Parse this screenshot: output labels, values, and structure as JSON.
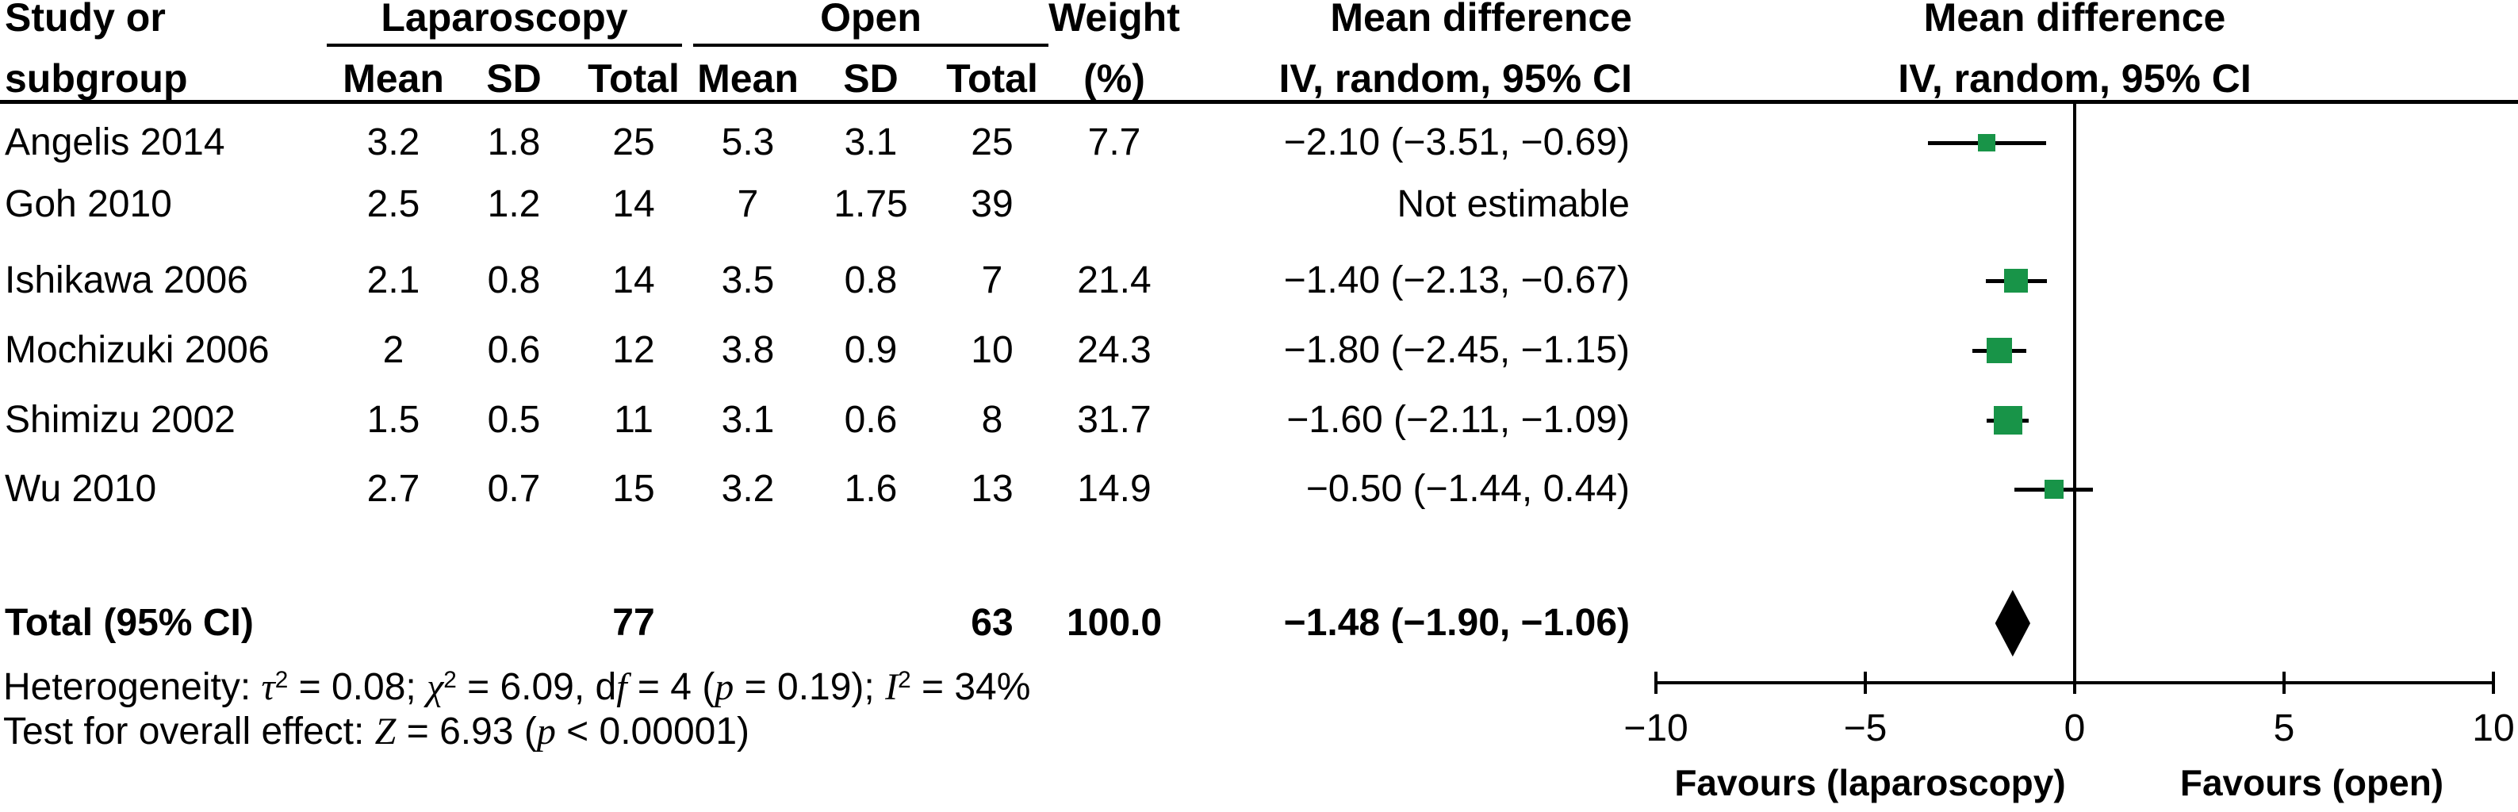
{
  "header": {
    "study_line1": "Study or",
    "study_line2": "subgroup",
    "laparoscopy": "Laparoscopy",
    "open": "Open",
    "mean": "Mean",
    "sd": "SD",
    "total": "Total",
    "weight_line1": "Weight",
    "weight_line2": "(%)",
    "md_line1": "Mean difference",
    "md_line2": "IV, random, 95% CI",
    "plot_line1": "Mean difference",
    "plot_line2": "IV, random, 95% CI"
  },
  "rows": [
    {
      "study": "Angelis 2014",
      "cells": [
        "3.2",
        "1.8",
        "25",
        "5.3",
        "3.1",
        "25",
        "7.7"
      ],
      "ci_text": "−2.10 (−3.51, −0.69)"
    },
    {
      "study": "Goh 2010",
      "cells": [
        "2.5",
        "1.2",
        "14",
        "7",
        "1.75",
        "39",
        ""
      ],
      "ci_text": "Not estimable"
    },
    {
      "study": "Ishikawa 2006",
      "cells": [
        "2.1",
        "0.8",
        "14",
        "3.5",
        "0.8",
        "7",
        "21.4"
      ],
      "ci_text": "−1.40 (−2.13, −0.67)"
    },
    {
      "study": "Mochizuki 2006",
      "cells": [
        "2",
        "0.6",
        "12",
        "3.8",
        "0.9",
        "10",
        "24.3"
      ],
      "ci_text": "−1.80 (−2.45, −1.15)"
    },
    {
      "study": "Shimizu 2002",
      "cells": [
        "1.5",
        "0.5",
        "11",
        "3.1",
        "0.6",
        "8",
        "31.7"
      ],
      "ci_text": "−1.60 (−2.11, −1.09)"
    },
    {
      "study": "Wu 2010",
      "cells": [
        "2.7",
        "0.7",
        "15",
        "3.2",
        "1.6",
        "13",
        "14.9"
      ],
      "ci_text": "−0.50 (−1.44, 0.44)"
    }
  ],
  "total_row": {
    "label": "Total (95% CI)",
    "lap_total": "77",
    "open_total": "63",
    "weight": "100.0",
    "ci_text": "−1.48 (−1.90, −1.06)"
  },
  "footnotes": {
    "heterogeneity_runs": [
      {
        "t": "Heterogeneity: "
      },
      {
        "t": "τ",
        "i": true
      },
      {
        "t": "2",
        "sup": true
      },
      {
        "t": " = 0.08; "
      },
      {
        "t": "χ",
        "i": true
      },
      {
        "t": "2",
        "sup": true
      },
      {
        "t": " = 6.09, d"
      },
      {
        "t": "f",
        "i": true
      },
      {
        "t": " = 4 ("
      },
      {
        "t": "p",
        "i": true
      },
      {
        "t": " = 0.19); "
      },
      {
        "t": "I",
        "i": true
      },
      {
        "t": "2",
        "sup": true
      },
      {
        "t": " = 34%"
      }
    ],
    "overall_runs": [
      {
        "t": "Test for overall effect: "
      },
      {
        "t": "Z",
        "i": true
      },
      {
        "t": " = 6.93 ("
      },
      {
        "t": "p",
        "i": true
      },
      {
        "t": " < 0.00001)"
      }
    ]
  },
  "axis": {
    "min": -10,
    "max": 10,
    "ticks": [
      -10,
      -5,
      0,
      5,
      10
    ],
    "tick_labels": [
      "−10",
      "−5",
      "0",
      "5",
      "10"
    ],
    "favours_left": "Favours (laparoscopy)",
    "favours_right": "Favours (open)"
  },
  "markers": {
    "sizes": [
      22,
      0,
      30,
      32,
      36,
      24
    ]
  },
  "colors": {
    "marker_green": "#189448",
    "line_black": "#000000",
    "diamond_black": "#000000"
  },
  "chart_data": {
    "type": "forest",
    "effect_measure": "Mean difference, IV, random, 95% CI",
    "model": "random effects",
    "group1_label": "Laparoscopy",
    "group2_label": "Open",
    "studies": [
      {
        "study": "Angelis 2014",
        "g1_mean": 3.2,
        "g1_sd": 1.8,
        "g1_total": 25,
        "g2_mean": 5.3,
        "g2_sd": 3.1,
        "g2_total": 25,
        "weight_pct": 7.7,
        "md": -2.1,
        "ci_low": -3.51,
        "ci_high": -0.69
      },
      {
        "study": "Goh 2010",
        "g1_mean": 2.5,
        "g1_sd": 1.2,
        "g1_total": 14,
        "g2_mean": 7,
        "g2_sd": 1.75,
        "g2_total": 39,
        "weight_pct": null,
        "md": null,
        "ci_low": null,
        "ci_high": null,
        "note": "Not estimable"
      },
      {
        "study": "Ishikawa 2006",
        "g1_mean": 2.1,
        "g1_sd": 0.8,
        "g1_total": 14,
        "g2_mean": 3.5,
        "g2_sd": 0.8,
        "g2_total": 7,
        "weight_pct": 21.4,
        "md": -1.4,
        "ci_low": -2.13,
        "ci_high": -0.67
      },
      {
        "study": "Mochizuki 2006",
        "g1_mean": 2,
        "g1_sd": 0.6,
        "g1_total": 12,
        "g2_mean": 3.8,
        "g2_sd": 0.9,
        "g2_total": 10,
        "weight_pct": 24.3,
        "md": -1.8,
        "ci_low": -2.45,
        "ci_high": -1.15
      },
      {
        "study": "Shimizu 2002",
        "g1_mean": 1.5,
        "g1_sd": 0.5,
        "g1_total": 11,
        "g2_mean": 3.1,
        "g2_sd": 0.6,
        "g2_total": 8,
        "weight_pct": 31.7,
        "md": -1.6,
        "ci_low": -2.11,
        "ci_high": -1.09
      },
      {
        "study": "Wu 2010",
        "g1_mean": 2.7,
        "g1_sd": 0.7,
        "g1_total": 15,
        "g2_mean": 3.2,
        "g2_sd": 1.6,
        "g2_total": 13,
        "weight_pct": 14.9,
        "md": -0.5,
        "ci_low": -1.44,
        "ci_high": 0.44
      }
    ],
    "total": {
      "label": "Total (95% CI)",
      "g1_total": 77,
      "g2_total": 63,
      "weight_pct": 100.0,
      "md": -1.48,
      "ci_low": -1.9,
      "ci_high": -1.06
    },
    "heterogeneity": "τ² = 0.08; χ² = 6.09, df = 4 (p = 0.19); I² = 34%",
    "overall_effect": "Z = 6.93 (p < 0.00001)",
    "x_axis": {
      "min": -10,
      "max": 10,
      "ticks": [
        -10,
        -5,
        0,
        5,
        10
      ],
      "favours_left": "Favours (laparoscopy)",
      "favours_right": "Favours (open)"
    }
  }
}
